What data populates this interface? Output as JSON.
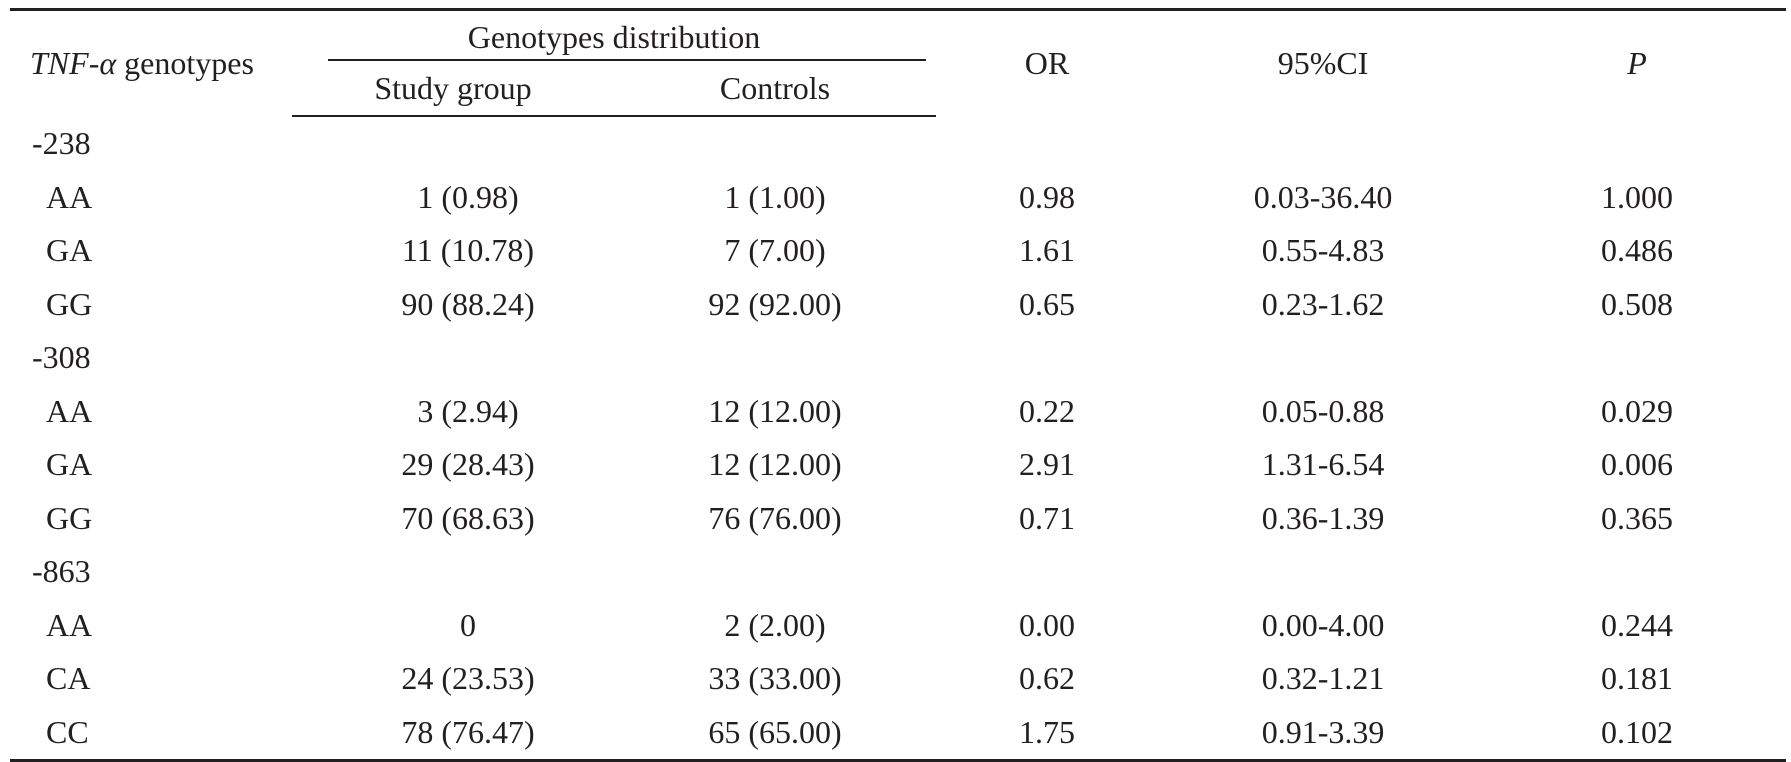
{
  "table": {
    "header": {
      "genotype_col_italic": "TNF-α",
      "genotype_col_rest": " genotypes",
      "group_label": "Genotypes distribution",
      "study_group": "Study group",
      "controls": "Controls",
      "or": "OR",
      "ci": "95%CI",
      "p": "P"
    },
    "sections": [
      {
        "label": "-238",
        "rows": [
          {
            "genotype": "AA",
            "study": "1 (0.98)",
            "controls": "1 (1.00)",
            "or": "0.98",
            "ci": "0.03-36.40",
            "p": "1.000"
          },
          {
            "genotype": "GA",
            "study": "11 (10.78)",
            "controls": "7 (7.00)",
            "or": "1.61",
            "ci": "0.55-4.83",
            "p": "0.486"
          },
          {
            "genotype": "GG",
            "study": "90 (88.24)",
            "controls": "92 (92.00)",
            "or": "0.65",
            "ci": "0.23-1.62",
            "p": "0.508"
          }
        ]
      },
      {
        "label": "-308",
        "rows": [
          {
            "genotype": "AA",
            "study": "3 (2.94)",
            "controls": "12 (12.00)",
            "or": "0.22",
            "ci": "0.05-0.88",
            "p": "0.029"
          },
          {
            "genotype": "GA",
            "study": "29 (28.43)",
            "controls": "12 (12.00)",
            "or": "2.91",
            "ci": "1.31-6.54",
            "p": "0.006"
          },
          {
            "genotype": "GG",
            "study": "70 (68.63)",
            "controls": "76 (76.00)",
            "or": "0.71",
            "ci": "0.36-1.39",
            "p": "0.365"
          }
        ]
      },
      {
        "label": "-863",
        "rows": [
          {
            "genotype": "AA",
            "study": "0",
            "controls": "2 (2.00)",
            "or": "0.00",
            "ci": "0.00-4.00",
            "p": "0.244"
          },
          {
            "genotype": "CA",
            "study": "24 (23.53)",
            "controls": "33 (33.00)",
            "or": "0.62",
            "ci": "0.32-1.21",
            "p": "0.181"
          },
          {
            "genotype": "CC",
            "study": "78 (76.47)",
            "controls": "65 (65.00)",
            "or": "1.75",
            "ci": "0.91-3.39",
            "p": "0.102"
          }
        ]
      }
    ]
  }
}
